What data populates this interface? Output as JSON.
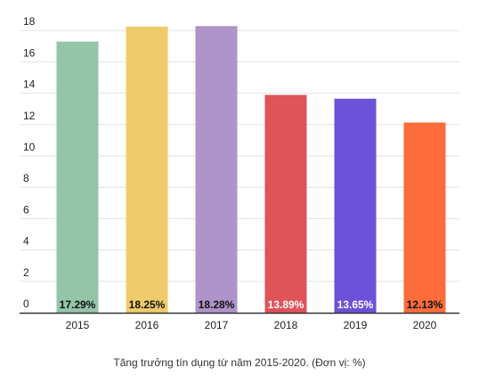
{
  "chart_data": {
    "type": "bar",
    "categories": [
      "2015",
      "2016",
      "2017",
      "2018",
      "2019",
      "2020"
    ],
    "values": [
      17.29,
      18.25,
      18.28,
      13.89,
      13.65,
      12.13
    ],
    "data_labels": [
      "17.29%",
      "18.25%",
      "18.28%",
      "13.89%",
      "13.65%",
      "12.13%"
    ],
    "colors": [
      "#93c5a9",
      "#efcb6a",
      "#ae94c8",
      "#df5359",
      "#6c51d9",
      "#fd6c3b"
    ],
    "label_colors": [
      "#111111",
      "#111111",
      "#111111",
      "#ffffff",
      "#ffffff",
      "#111111"
    ],
    "yticks": [
      "0",
      "2",
      "4",
      "6",
      "8",
      "10",
      "12",
      "14",
      "16",
      "18"
    ],
    "ylim": [
      0,
      18.5
    ],
    "grid": true,
    "title": "",
    "xlabel": "",
    "ylabel": "",
    "caption": "Tăng trưởng tín dụng từ năm 2015-2020. (Đơn vị: %)"
  }
}
